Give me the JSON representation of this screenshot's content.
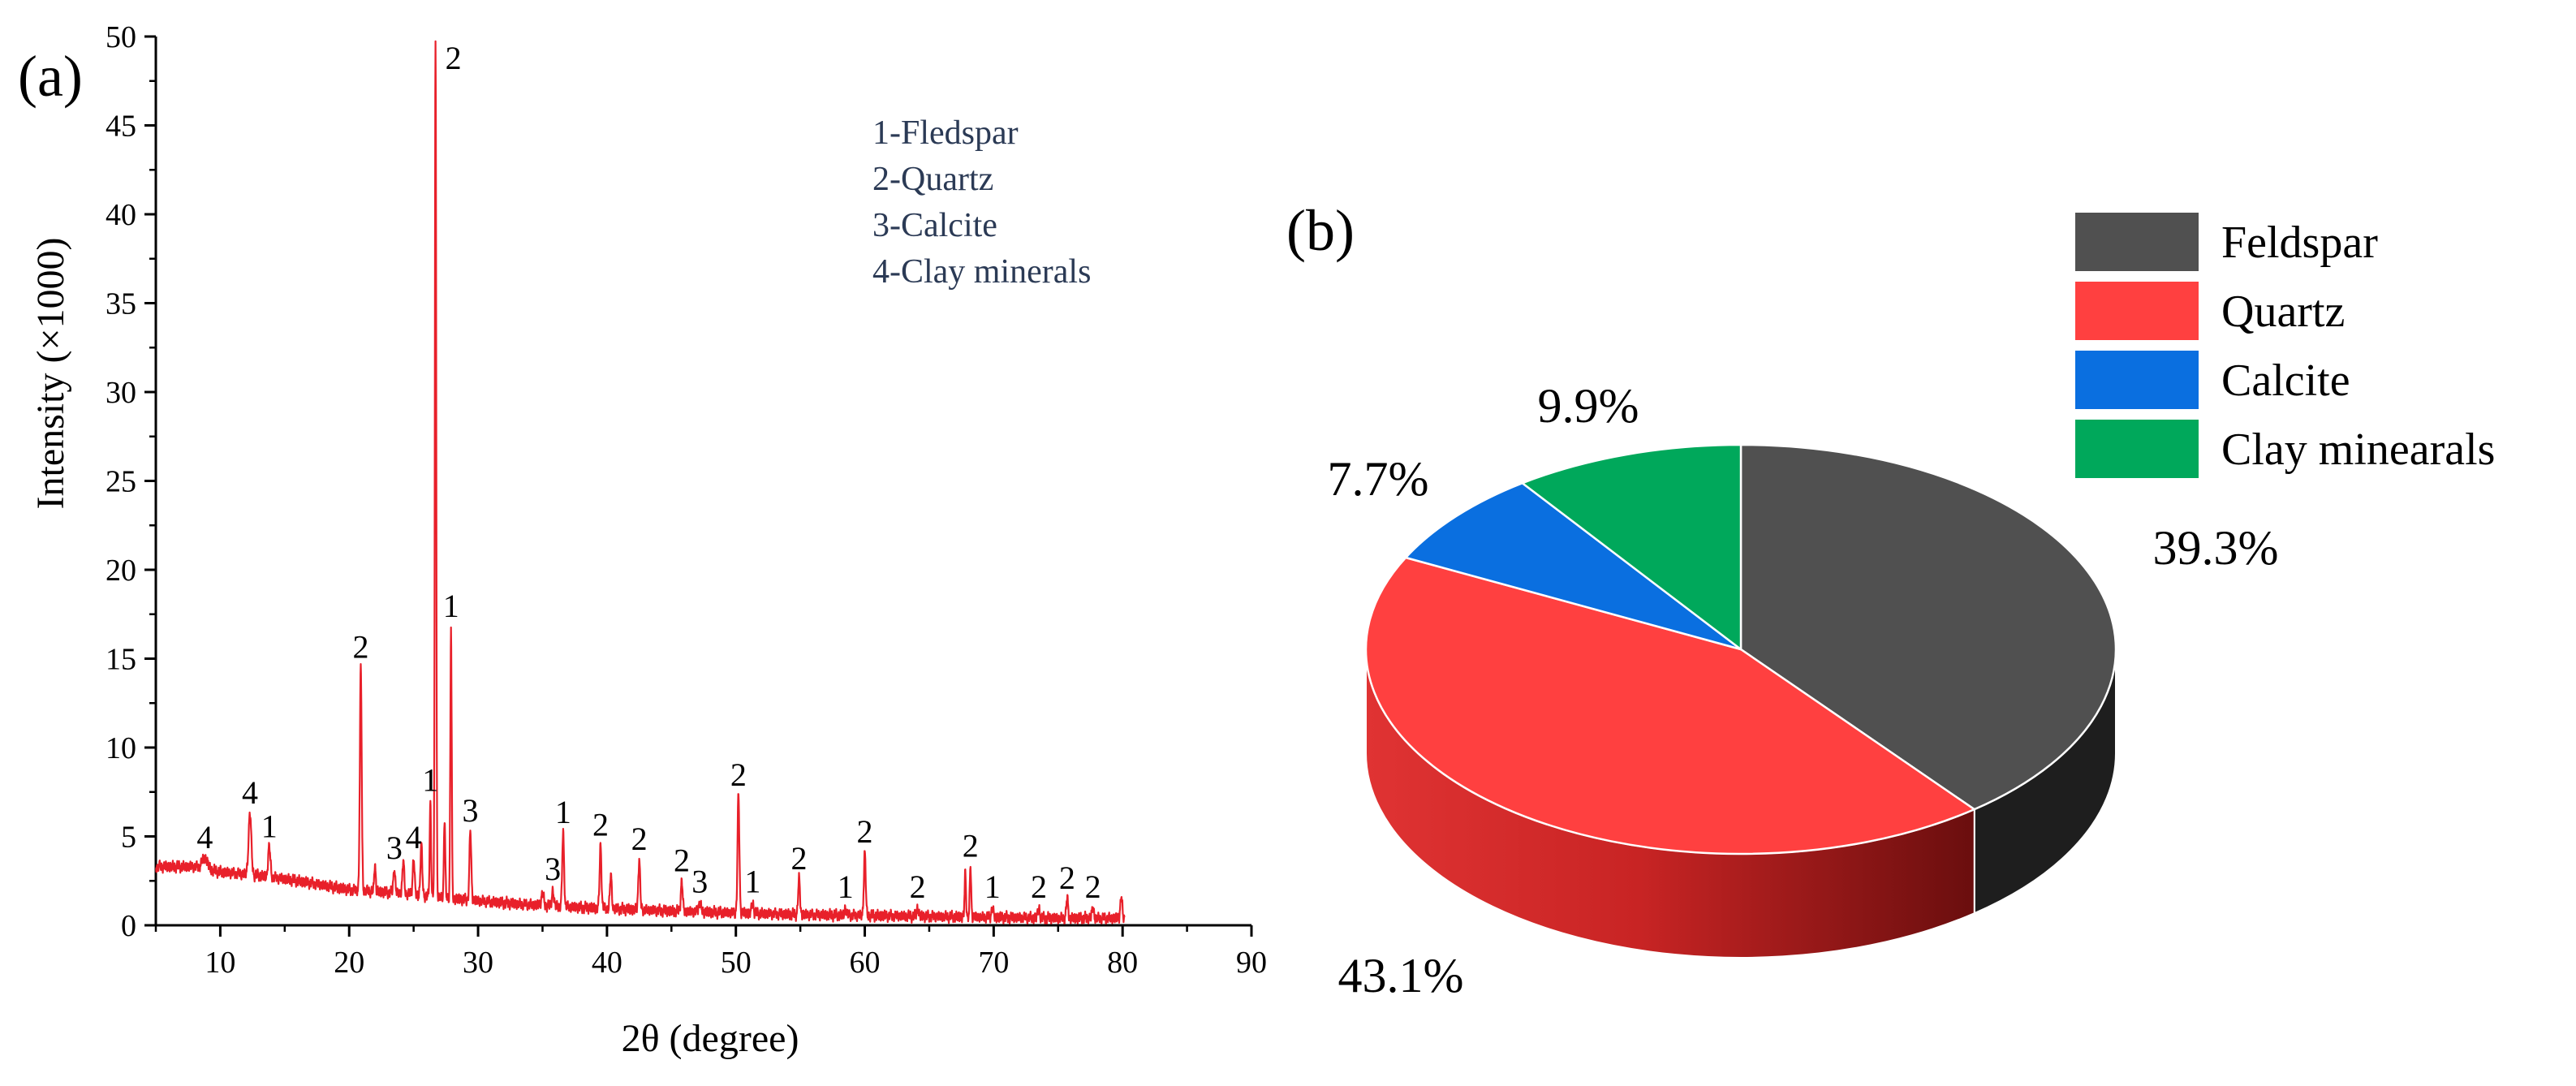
{
  "panel_a": {
    "panel_label": "(a)",
    "legend_lines": [
      "1-Fledspar",
      "2-Quartz",
      "3-Calcite",
      "4-Clay minerals"
    ]
  },
  "panel_b": {
    "panel_label": "(b)"
  },
  "colors": {
    "xrd_line": "#e8202a",
    "axis": "#000000",
    "legend_text": "#2b3a55",
    "slice_top_edge": "#ffffff"
  },
  "chart_data": [
    {
      "type": "line",
      "title": "",
      "xlabel": "2θ (degree)",
      "ylabel": "Intensity (×1000)",
      "xlim": [
        5,
        90
      ],
      "ylim": [
        0,
        50
      ],
      "xticks": [
        10,
        20,
        30,
        40,
        50,
        60,
        70,
        80,
        90
      ],
      "yticks": [
        0,
        5,
        10,
        15,
        20,
        25,
        30,
        35,
        40,
        45,
        50
      ],
      "grid": false,
      "baseline": [
        [
          5,
          3.3
        ],
        [
          8,
          3.3
        ],
        [
          10,
          3.0
        ],
        [
          13,
          2.8
        ],
        [
          16,
          2.5
        ],
        [
          20,
          2.0
        ],
        [
          24,
          1.8
        ],
        [
          28,
          1.5
        ],
        [
          33,
          1.2
        ],
        [
          38,
          1.0
        ],
        [
          45,
          0.8
        ],
        [
          55,
          0.6
        ],
        [
          65,
          0.5
        ],
        [
          75,
          0.4
        ],
        [
          80,
          0.4
        ]
      ],
      "peaks": [
        {
          "x": 8.8,
          "y": 3.8,
          "w": 0.6,
          "label": "4"
        },
        {
          "x": 12.3,
          "y": 6.3,
          "w": 0.3,
          "label": "4"
        },
        {
          "x": 13.8,
          "y": 4.4,
          "w": 0.25,
          "label": "1"
        },
        {
          "x": 20.9,
          "y": 14.5,
          "w": 0.2,
          "label": "2"
        },
        {
          "x": 22.0,
          "y": 3.5,
          "w": 0.15
        },
        {
          "x": 23.5,
          "y": 3.2,
          "w": 0.2,
          "label": "3"
        },
        {
          "x": 24.2,
          "y": 3.6,
          "w": 0.2
        },
        {
          "x": 25.0,
          "y": 3.8,
          "w": 0.2,
          "label": "4"
        },
        {
          "x": 25.6,
          "y": 4.5,
          "w": 0.2
        },
        {
          "x": 26.3,
          "y": 7.0,
          "w": 0.15,
          "label": "1"
        },
        {
          "x": 26.7,
          "y": 50.0,
          "w": 0.15,
          "label": "2"
        },
        {
          "x": 27.4,
          "y": 6.0,
          "w": 0.15
        },
        {
          "x": 27.9,
          "y": 16.8,
          "w": 0.15,
          "label": "1"
        },
        {
          "x": 29.4,
          "y": 5.3,
          "w": 0.2,
          "label": "3"
        },
        {
          "x": 35.0,
          "y": 1.8,
          "w": 0.25
        },
        {
          "x": 35.8,
          "y": 2.0,
          "w": 0.2,
          "label": "3"
        },
        {
          "x": 36.6,
          "y": 5.2,
          "w": 0.2,
          "label": "1"
        },
        {
          "x": 39.5,
          "y": 4.5,
          "w": 0.2,
          "label": "2"
        },
        {
          "x": 40.3,
          "y": 2.8,
          "w": 0.2
        },
        {
          "x": 42.5,
          "y": 3.7,
          "w": 0.2,
          "label": "2"
        },
        {
          "x": 45.8,
          "y": 2.5,
          "w": 0.2,
          "label": "2"
        },
        {
          "x": 47.2,
          "y": 1.3,
          "w": 0.25,
          "label": "3"
        },
        {
          "x": 50.2,
          "y": 7.3,
          "w": 0.2,
          "label": "2"
        },
        {
          "x": 51.3,
          "y": 1.3,
          "w": 0.2,
          "label": "1"
        },
        {
          "x": 54.9,
          "y": 2.6,
          "w": 0.2,
          "label": "2"
        },
        {
          "x": 58.5,
          "y": 1.0,
          "w": 0.2,
          "label": "1"
        },
        {
          "x": 60.0,
          "y": 4.1,
          "w": 0.2,
          "label": "2"
        },
        {
          "x": 64.1,
          "y": 1.0,
          "w": 0.2,
          "label": "2"
        },
        {
          "x": 67.8,
          "y": 3.0,
          "w": 0.15
        },
        {
          "x": 68.2,
          "y": 3.3,
          "w": 0.15,
          "label": "2"
        },
        {
          "x": 69.9,
          "y": 1.0,
          "w": 0.2,
          "label": "1"
        },
        {
          "x": 73.5,
          "y": 1.0,
          "w": 0.2,
          "label": "2"
        },
        {
          "x": 75.7,
          "y": 1.5,
          "w": 0.2,
          "label": "2"
        },
        {
          "x": 77.7,
          "y": 1.0,
          "w": 0.2,
          "label": "2"
        },
        {
          "x": 79.9,
          "y": 1.6,
          "w": 0.2
        }
      ]
    },
    {
      "type": "pie",
      "title": "",
      "legend_position": "top-right",
      "slices": [
        {
          "name": "Feldspar",
          "value": 39.3,
          "label": "39.3%",
          "color": "#505050",
          "side_color": "#1e1e1e"
        },
        {
          "name": "Quartz",
          "value": 43.1,
          "label": "43.1%",
          "color": "#ff4040",
          "side_color": "#d72a2a"
        },
        {
          "name": "Calcite",
          "value": 7.7,
          "label": "7.7%",
          "color": "#0a6fe0",
          "side_color": "#0a55b0"
        },
        {
          "name": "Clay minearals",
          "value": 9.9,
          "label": "9.9%",
          "color": "#00a85b",
          "side_color": "#008a48"
        }
      ]
    }
  ]
}
